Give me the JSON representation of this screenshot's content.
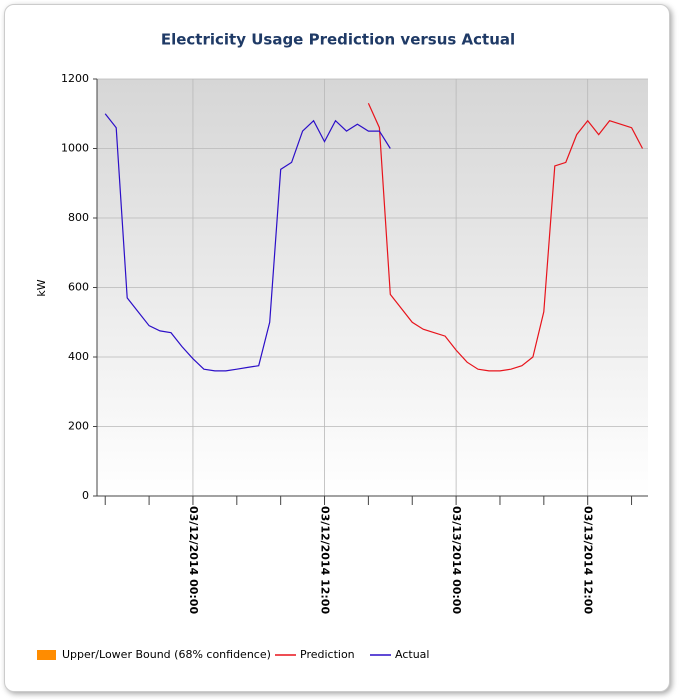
{
  "chart_data": {
    "type": "line",
    "title": "Electricity Usage Prediction versus Actual",
    "y_label": "kW",
    "x": [
      "03/11/2014 16:00",
      "03/11/2014 17:00",
      "03/11/2014 18:00",
      "03/11/2014 19:00",
      "03/11/2014 20:00",
      "03/11/2014 21:00",
      "03/11/2014 22:00",
      "03/11/2014 23:00",
      "03/12/2014 00:00",
      "03/12/2014 01:00",
      "03/12/2014 02:00",
      "03/12/2014 03:00",
      "03/12/2014 04:00",
      "03/12/2014 05:00",
      "03/12/2014 06:00",
      "03/12/2014 07:00",
      "03/12/2014 08:00",
      "03/12/2014 09:00",
      "03/12/2014 10:00",
      "03/12/2014 11:00",
      "03/12/2014 12:00",
      "03/12/2014 13:00",
      "03/12/2014 14:00",
      "03/12/2014 15:00",
      "03/12/2014 16:00",
      "03/12/2014 17:00",
      "03/12/2014 18:00",
      "03/12/2014 19:00",
      "03/12/2014 20:00",
      "03/12/2014 21:00",
      "03/12/2014 22:00",
      "03/12/2014 23:00",
      "03/13/2014 00:00",
      "03/13/2014 01:00",
      "03/13/2014 02:00",
      "03/13/2014 03:00",
      "03/13/2014 04:00",
      "03/13/2014 05:00",
      "03/13/2014 06:00",
      "03/13/2014 07:00",
      "03/13/2014 08:00",
      "03/13/2014 09:00",
      "03/13/2014 10:00",
      "03/13/2014 11:00",
      "03/13/2014 12:00",
      "03/13/2014 13:00",
      "03/13/2014 14:00",
      "03/13/2014 15:00",
      "03/13/2014 16:00",
      "03/13/2014 17:00"
    ],
    "series": [
      {
        "name": "Upper/Lower Bound (68% confidence)",
        "color": "#ff8c00"
      },
      {
        "name": "Prediction",
        "color": "#e8141c",
        "values": [
          null,
          null,
          null,
          null,
          null,
          null,
          null,
          null,
          null,
          null,
          null,
          null,
          null,
          null,
          null,
          null,
          null,
          null,
          null,
          null,
          null,
          null,
          null,
          null,
          1130,
          1060,
          580,
          540,
          500,
          480,
          470,
          460,
          420,
          385,
          365,
          360,
          360,
          365,
          375,
          400,
          530,
          950,
          960,
          1040,
          1080,
          1040,
          1080,
          1070,
          1060,
          1000
        ]
      },
      {
        "name": "Actual",
        "color": "#2c0fc8",
        "values": [
          1100,
          1060,
          570,
          530,
          490,
          475,
          470,
          430,
          395,
          365,
          360,
          360,
          365,
          370,
          375,
          500,
          940,
          960,
          1050,
          1080,
          1020,
          1080,
          1050,
          1070,
          1050,
          1050,
          1000,
          null,
          null,
          null,
          null,
          null,
          null,
          null,
          null,
          null,
          null,
          null,
          null,
          null,
          null,
          null,
          null,
          null,
          null,
          null,
          null,
          null,
          null,
          null
        ]
      }
    ],
    "xlim": [
      "03/11/2014 15:15",
      "03/13/2014 17:30"
    ],
    "xticks": [
      "03/12/2014 00:00",
      "03/12/2014 12:00",
      "03/13/2014 00:00",
      "03/13/2014 12:00"
    ],
    "ylim": [
      0,
      1200
    ],
    "yticks": [
      0,
      200,
      400,
      600,
      800,
      1000,
      1200
    ],
    "grid": true
  }
}
